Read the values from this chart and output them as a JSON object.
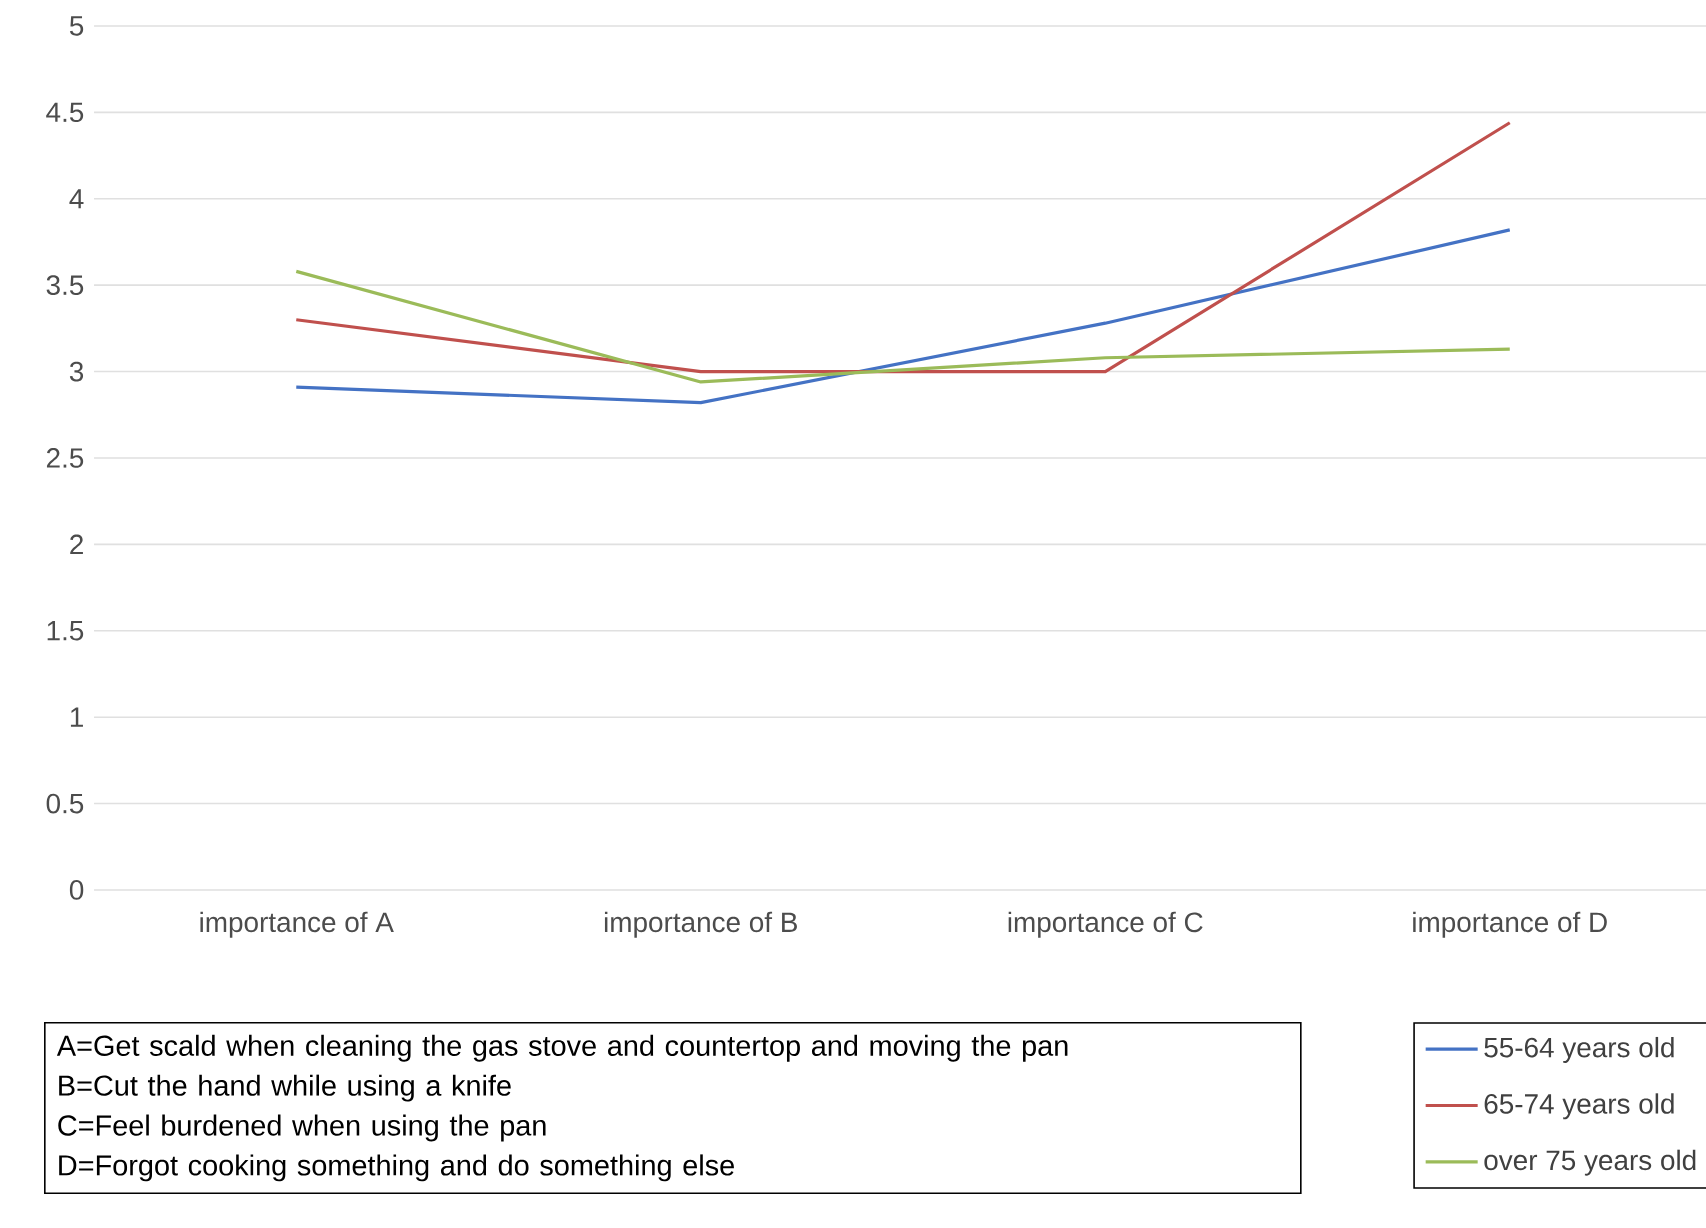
{
  "chart_data": {
    "type": "line",
    "categories": [
      "importance of A",
      "importance of B",
      "importance of C",
      "importance of D"
    ],
    "series": [
      {
        "name": "55-64 years old",
        "color": "#4472c4",
        "values": [
          2.91,
          2.82,
          3.28,
          3.82
        ]
      },
      {
        "name": "65-74 years old",
        "color": "#c0504d",
        "values": [
          3.3,
          3.0,
          3.0,
          4.44
        ]
      },
      {
        "name": "over 75 years old",
        "color": "#9bbb59",
        "values": [
          3.58,
          2.94,
          3.08,
          3.13
        ]
      }
    ],
    "ylim": [
      0,
      5
    ],
    "yticks": [
      0,
      0.5,
      1,
      1.5,
      2,
      2.5,
      3,
      3.5,
      4,
      4.5,
      5
    ],
    "grid": "y",
    "legend": "bottom right",
    "marker": "none",
    "line_style": "solid",
    "annotations": [
      "A=Get scald when cleaning the gas stove and countertop and moving the pan",
      "B=Cut the hand while using a knife",
      "C=Feel burdened when using the pan",
      "D=Forgot cooking something and do something else"
    ]
  }
}
